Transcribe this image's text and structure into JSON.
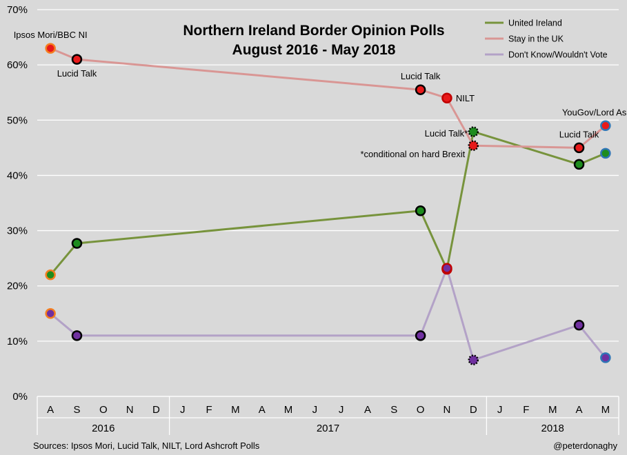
{
  "chart_data": {
    "type": "line",
    "title_lines": [
      "Northern Ireland Border Opinion Polls",
      "August 2016 - May 2018"
    ],
    "y_ticks": [
      "0%",
      "10%",
      "20%",
      "30%",
      "40%",
      "50%",
      "60%",
      "70%"
    ],
    "ylim": [
      0,
      70
    ],
    "grid": "horizontal",
    "legend_position": "top-right",
    "months": [
      "A",
      "S",
      "O",
      "N",
      "D",
      "J",
      "F",
      "M",
      "A",
      "M",
      "J",
      "J",
      "A",
      "S",
      "O",
      "N",
      "D",
      "J",
      "F",
      "M",
      "A",
      "M"
    ],
    "years": [
      {
        "label": "2016",
        "start": 0,
        "end": 4
      },
      {
        "label": "2017",
        "start": 5,
        "end": 16
      },
      {
        "label": "2018",
        "start": 17,
        "end": 21
      }
    ],
    "series": [
      {
        "name": "United Ireland",
        "color": "#77933c",
        "points": [
          {
            "x": 0,
            "y": 22
          },
          {
            "x": 1,
            "y": 27.7
          },
          {
            "x": 14,
            "y": 33.6
          },
          {
            "x": 15,
            "y": 23
          },
          {
            "x": 16,
            "y": 47.9
          },
          {
            "x": 20,
            "y": 42
          },
          {
            "x": 21,
            "y": 44
          }
        ]
      },
      {
        "name": "Stay in the UK",
        "color": "#d99694",
        "points": [
          {
            "x": 0,
            "y": 63
          },
          {
            "x": 1,
            "y": 61
          },
          {
            "x": 14,
            "y": 55.5
          },
          {
            "x": 15,
            "y": 54
          },
          {
            "x": 16,
            "y": 45.4
          },
          {
            "x": 20,
            "y": 45
          },
          {
            "x": 21,
            "y": 49
          }
        ]
      },
      {
        "name": "Don't Know/Wouldn't Vote",
        "color": "#b3a2c7",
        "points": [
          {
            "x": 0,
            "y": 15
          },
          {
            "x": 1,
            "y": 11
          },
          {
            "x": 14,
            "y": 11
          },
          {
            "x": 15,
            "y": 23.2
          },
          {
            "x": 16,
            "y": 6.6
          },
          {
            "x": 20,
            "y": 12.9
          },
          {
            "x": 21,
            "y": 7
          }
        ]
      }
    ],
    "poll_sources": [
      {
        "x": 0,
        "pollster": "Ipsos Mori/BBC NI",
        "ring": "#f47e20"
      },
      {
        "x": 1,
        "pollster": "Lucid Talk",
        "ring": "#000000"
      },
      {
        "x": 14,
        "pollster": "Lucid Talk",
        "ring": "#000000"
      },
      {
        "x": 15,
        "pollster": "NILT",
        "ring": "#c00000"
      },
      {
        "x": 16,
        "pollster": "Lucid Talk*",
        "ring": "#000000",
        "dashed": true
      },
      {
        "x": 20,
        "pollster": "Lucid Talk",
        "ring": "#000000"
      },
      {
        "x": 21,
        "pollster": "YouGov/Lord Ashcroft",
        "ring": "#2e75b6"
      }
    ],
    "marker_fills": {
      "United Ireland": "#1e8c1e",
      "Stay in the UK": "#e8191a",
      "Don't Know/Wouldn't Vote": "#7030a0"
    },
    "annotations": [
      {
        "text": "Ipsos Mori/BBC NI",
        "anchor": "0,63",
        "pos": "above"
      },
      {
        "text": "Lucid Talk",
        "anchor": "1,61",
        "pos": "below"
      },
      {
        "text": "Lucid Talk",
        "anchor": "14,55.5",
        "pos": "above"
      },
      {
        "text": "NILT",
        "anchor": "15,54",
        "pos": "right"
      },
      {
        "text": "Lucid Talk*",
        "anchor": "16,45.4",
        "pos": "above-left"
      },
      {
        "text": "*conditional on hard Brexit",
        "anchor": "16,45.4",
        "pos": "left"
      },
      {
        "text": "Lucid Talk",
        "anchor": "20,45",
        "pos": "above"
      },
      {
        "text": "YouGov/Lord Ashcroft",
        "anchor": "21,49",
        "pos": "above"
      }
    ]
  },
  "footer": {
    "sources": "Sources: Ipsos Mori, Lucid Talk, NILT, Lord Ashcroft Polls",
    "credit": "@peterdonaghy"
  }
}
